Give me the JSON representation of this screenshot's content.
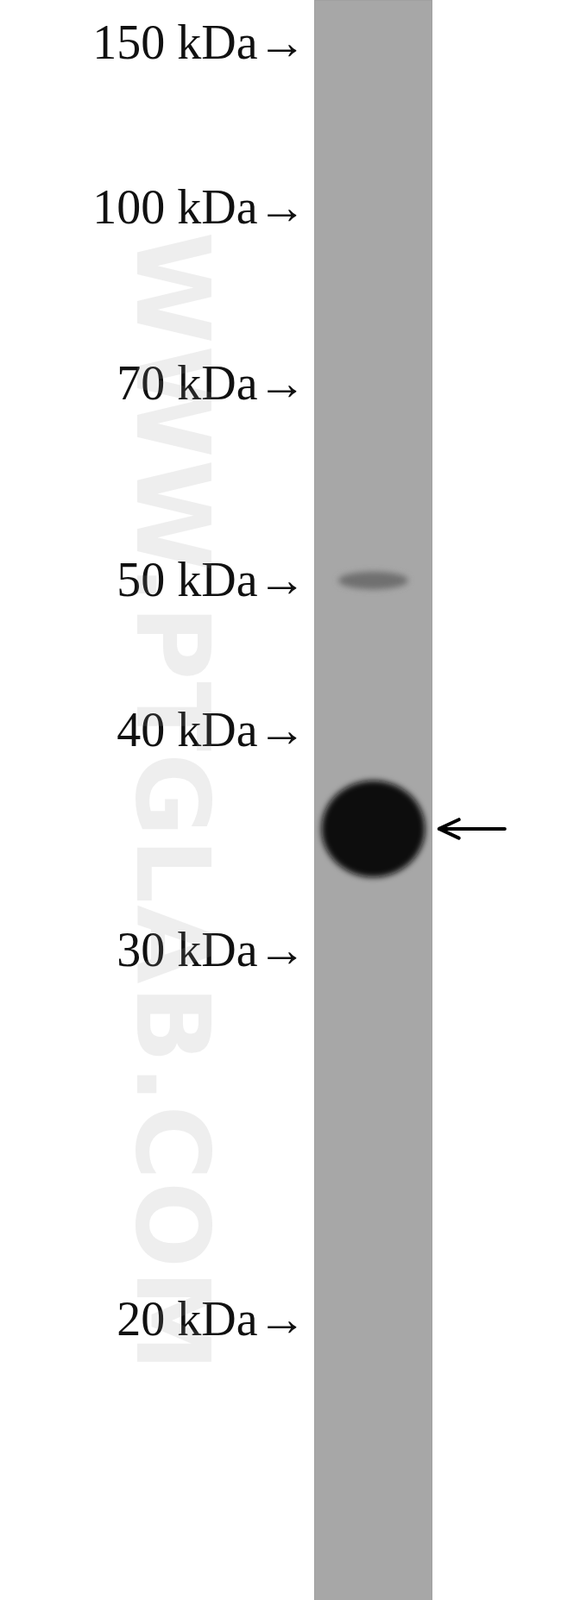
{
  "chart_data": {
    "type": "western_blot",
    "ylim": [
      15.4,
      169
    ],
    "yticks": [
      {
        "value": 150,
        "label": "150 kDa→"
      },
      {
        "value": 100,
        "label": "100 kDa→"
      },
      {
        "value": 70,
        "label": "70 kDa→"
      },
      {
        "value": 50,
        "label": "50 kDa→"
      },
      {
        "value": 40,
        "label": "40 kDa→"
      },
      {
        "value": 30,
        "label": "30 kDa→"
      },
      {
        "value": 20,
        "label": "20 kDa→"
      }
    ],
    "tick_labels": "y",
    "bands": [
      {
        "kDa": 50,
        "intensity": 0.35
      },
      {
        "kDa": 35,
        "intensity": 1
      }
    ],
    "arrow_kDa": 35,
    "watermark": "WWW.PTGLAB.COM"
  }
}
